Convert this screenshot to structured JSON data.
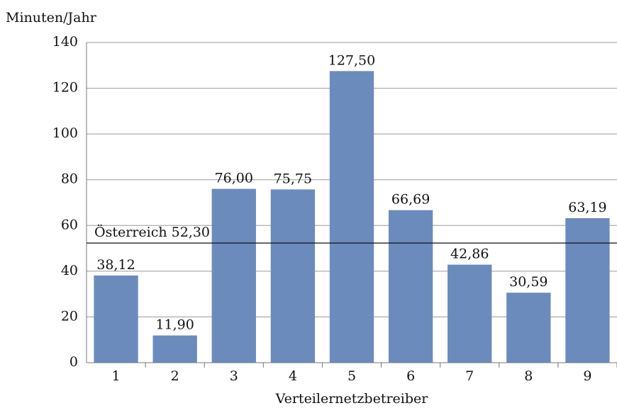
{
  "chart_data": {
    "type": "bar",
    "y_axis_label": "Minuten/Jahr",
    "x_axis_label": "Verteilernetzbetreiber",
    "categories": [
      "1",
      "2",
      "3",
      "4",
      "5",
      "6",
      "7",
      "8",
      "9"
    ],
    "values": [
      38.12,
      11.9,
      76.0,
      75.75,
      127.5,
      66.69,
      42.86,
      30.59,
      63.19
    ],
    "value_labels": [
      "38,12",
      "11,90",
      "76,00",
      "75,75",
      "127,50",
      "66,69",
      "42,86",
      "30,59",
      "63,19"
    ],
    "color": "#6c8bbd",
    "ylim": [
      0,
      140
    ],
    "yticks": [
      0,
      20,
      40,
      60,
      80,
      100,
      120,
      140
    ],
    "grid": true,
    "reference_line": {
      "value": 52.3,
      "label": "Österreich 52,30"
    }
  }
}
